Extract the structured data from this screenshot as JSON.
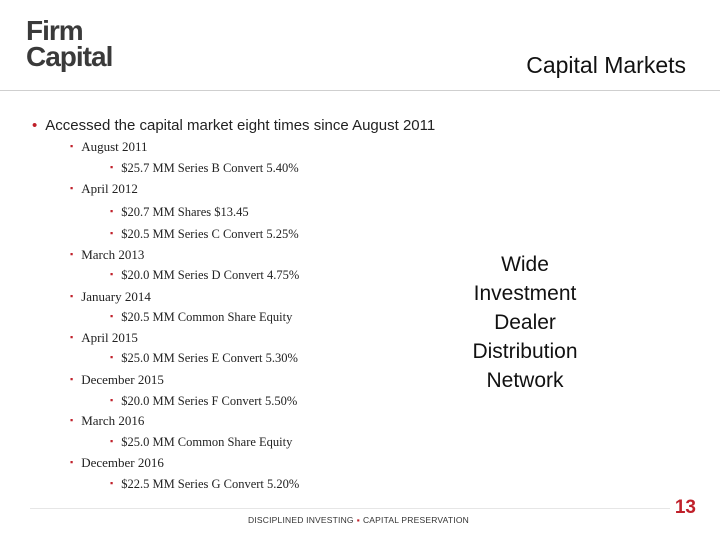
{
  "logo": {
    "line1": "Firm",
    "line2": "Capital"
  },
  "title": "Capital Markets",
  "intro": "Accessed the capital market eight times since August 2011",
  "offerings": [
    {
      "date": "August 2011",
      "items": [
        "$25.7 MM Series B Convert 5.40%"
      ]
    },
    {
      "date": "April 2012",
      "items": [
        "$20.7 MM Shares $13.45",
        "$20.5 MM Series C Convert 5.25%"
      ]
    },
    {
      "date": "March 2013",
      "items": [
        "$20.0 MM Series D Convert 4.75%"
      ]
    },
    {
      "date": "January 2014",
      "items": [
        "$20.5 MM Common Share Equity"
      ]
    },
    {
      "date": "April 2015",
      "items": [
        "$25.0 MM Series E Convert 5.30%"
      ]
    },
    {
      "date": "December 2015",
      "items": [
        "$20.0 MM Series F Convert 5.50%"
      ]
    },
    {
      "date": "March 2016",
      "items": [
        "$25.0 MM Common Share Equity"
      ]
    },
    {
      "date": "December 2016",
      "items": [
        "$22.5 MM Series G Convert 5.20%"
      ]
    }
  ],
  "side_text": [
    "Wide",
    "Investment",
    "Dealer",
    "Distribution",
    "Network"
  ],
  "footer": {
    "left": "DISCIPLINED INVESTING",
    "separator": "▪",
    "right": "CAPITAL PRESERVATION"
  },
  "page_number": "13",
  "accent_color": "#c0202a"
}
